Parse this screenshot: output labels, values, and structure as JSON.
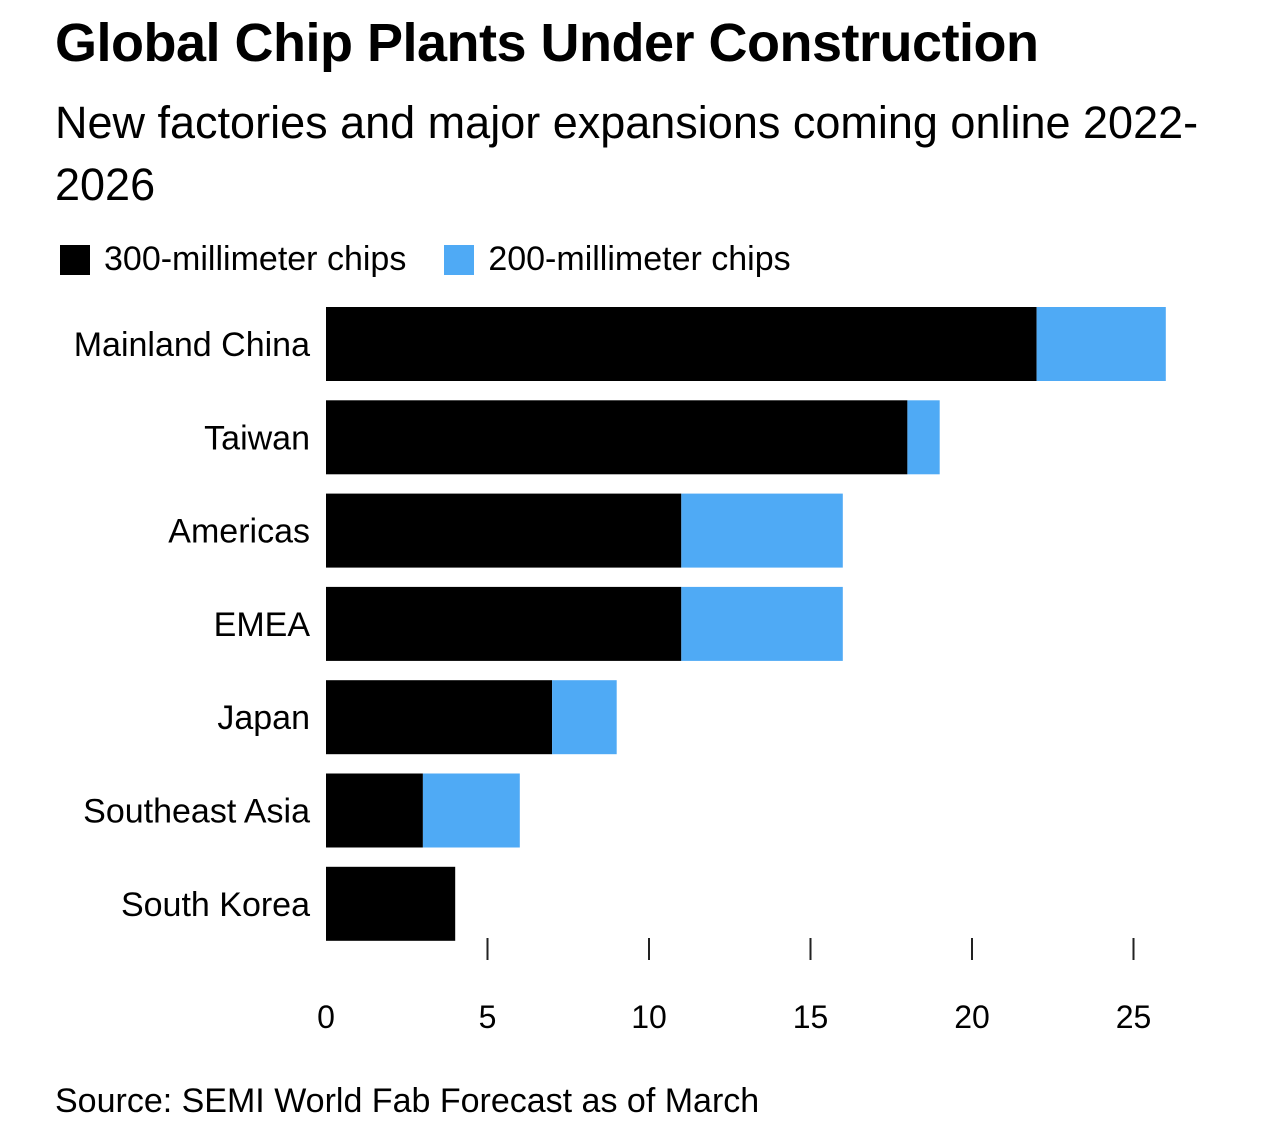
{
  "chart_data": {
    "type": "bar",
    "orientation": "horizontal",
    "stacked": true,
    "title": "Global Chip Plants Under Construction",
    "subtitle": "New factories and major expansions coming online 2022-2026",
    "categories": [
      "Mainland China",
      "Taiwan",
      "Americas",
      "EMEA",
      "Japan",
      "Southeast Asia",
      "South Korea"
    ],
    "series": [
      {
        "name": "300-millimeter chips",
        "color": "#000000",
        "values": [
          22,
          18,
          11,
          11,
          7,
          3,
          4
        ]
      },
      {
        "name": "200-millimeter chips",
        "color": "#4FAAF5",
        "values": [
          4,
          1,
          5,
          5,
          2,
          3,
          0
        ]
      }
    ],
    "xlim": [
      0,
      26
    ],
    "xticks": [
      0,
      5,
      10,
      15,
      20,
      25
    ],
    "xlabel": "",
    "ylabel": "",
    "grid": false,
    "legend_position": "top-left",
    "source": "Source: SEMI World Fab Forecast as of March"
  }
}
